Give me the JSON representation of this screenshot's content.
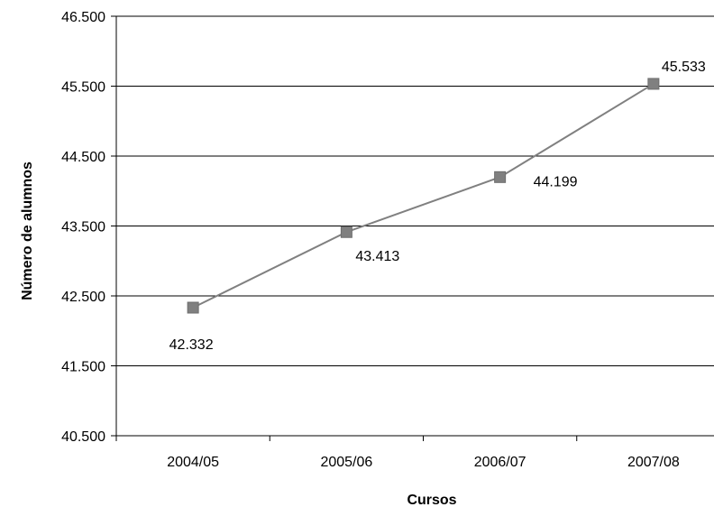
{
  "chart_data": {
    "type": "line",
    "categories": [
      "2004/05",
      "2005/06",
      "2006/07",
      "2007/08"
    ],
    "series": [
      {
        "values": [
          42332,
          43413,
          44199,
          45533
        ],
        "value_labels": [
          "42.332",
          "43.413",
          "44.199",
          "45.533"
        ]
      }
    ],
    "xlabel": "Cursos",
    "ylabel": "Número de alumnos",
    "ylim": [
      40500,
      46500
    ],
    "yticks": [
      40500,
      41500,
      42500,
      43500,
      44500,
      45500,
      46500
    ],
    "ytick_labels": [
      "40.500",
      "41.500",
      "42.500",
      "43.500",
      "44.500",
      "45.500",
      "46.500"
    ],
    "grid": "horizontal",
    "legend": "none",
    "marker": "square"
  },
  "colors": {
    "line": "#808080",
    "marker": "#808080",
    "marker_stroke": "#6e6e6e",
    "grid": "#000000",
    "axis": "#000000"
  }
}
